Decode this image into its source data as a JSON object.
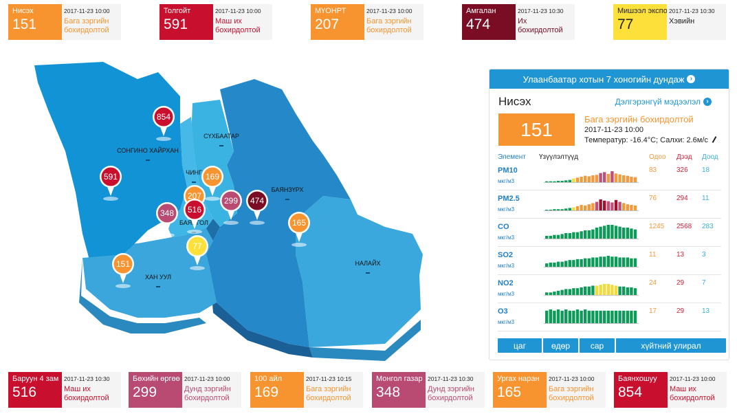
{
  "top_stations": [
    {
      "name": "Нисэх",
      "value": "151",
      "time": "2017-11-23 10:00",
      "level": "Бага зэргийн бохирдолтой",
      "color": "#f7942f",
      "level_color": "#f7942f"
    },
    {
      "name": "Толгойт",
      "value": "591",
      "time": "2017-11-23 10:00",
      "level": "Маш их бохирдолтой",
      "color": "#c8102e",
      "level_color": "#c8102e"
    },
    {
      "name": "МҮОНРТ",
      "value": "207",
      "time": "2017-11-23 10:00",
      "level": "Бага зэргийн бохирдолтой",
      "color": "#f7942f",
      "level_color": "#f7942f"
    },
    {
      "name": "Амгалан",
      "value": "474",
      "time": "2017-11-23 10:30",
      "level": "Их бохирдолтой",
      "color": "#7a0d24",
      "level_color": "#7a0d24"
    },
    {
      "name": "Мишээл экспо",
      "value": "77",
      "time": "2017-11-23 10:30",
      "level": "Хэвийн",
      "color": "#fde03a",
      "level_color": "#222222",
      "name_color": "#222222",
      "value_color": "#222222"
    }
  ],
  "bottom_stations": [
    {
      "name": "Баруун 4 зам",
      "value": "516",
      "time": "2017-11-23 10:30",
      "level": "Маш их бохирдолтой",
      "color": "#c8102e",
      "level_color": "#c8102e"
    },
    {
      "name": "Бөхийн өргөө",
      "value": "299",
      "time": "2017-11-23 10:00",
      "level": "Дунд зэргийн бохирдолтой",
      "color": "#b94a72",
      "level_color": "#b94a72"
    },
    {
      "name": "100 айл",
      "value": "169",
      "time": "2017-11-23 10:15",
      "level": "Бага зэргийн бохирдолтой",
      "color": "#f7942f",
      "level_color": "#f7942f"
    },
    {
      "name": "Монгол газар",
      "value": "348",
      "time": "2017-11-23 10:30",
      "level": "Дунд зэргийн бохирдолтой",
      "color": "#b94a72",
      "level_color": "#b94a72"
    },
    {
      "name": "Ургах наран",
      "value": "165",
      "time": "2017-11-23 10:00",
      "level": "Бага зэргийн бохирдолтой",
      "color": "#f7942f",
      "level_color": "#f7942f"
    },
    {
      "name": "Баянхошуу",
      "value": "854",
      "time": "2017-11-23 10:00",
      "level": "Маш их бохирдолтой",
      "color": "#c8102e",
      "level_color": "#c8102e"
    }
  ],
  "map": {
    "districts": [
      "СОНГИНО ХАЙРХАН",
      "СҮХБААТАР",
      "ЧИНГ",
      "БАЯНЗҮРХ",
      "БАЯНГОЛ",
      "ХАН УУЛ",
      "НАЛАЙХ"
    ],
    "pins": [
      {
        "value": "854",
        "color": "#c8102e"
      },
      {
        "value": "591",
        "color": "#c8102e"
      },
      {
        "value": "169",
        "color": "#f7942f"
      },
      {
        "value": "207",
        "color": "#f7942f"
      },
      {
        "value": "516",
        "color": "#c8102e"
      },
      {
        "value": "299",
        "color": "#b94a72"
      },
      {
        "value": "474",
        "color": "#7a0d24"
      },
      {
        "value": "348",
        "color": "#b94a72"
      },
      {
        "value": "165",
        "color": "#f7942f"
      },
      {
        "value": "77",
        "color": "#fde03a"
      },
      {
        "value": "151",
        "color": "#f7942f"
      }
    ]
  },
  "panel": {
    "header": "Улаанбаатар хотын 7 хоногийн дундаж",
    "station_name": "Нисэх",
    "detail_link": "Дэлгэрэнгүй мэдээлэл",
    "aqi": "151",
    "level": "Бага зэргийн бохирдолтой",
    "time": "2017-11-23 10:00",
    "weather": "Температур: -16.4°C; Салхи: 2.6м/с",
    "columns": {
      "element": "Элемент",
      "indicators": "Үзүүлэлтүүд",
      "current": "Одоо",
      "max": "Дээд",
      "min": "Доод"
    },
    "pollutants": [
      {
        "name": "PM10",
        "unit": "мкг/м3",
        "current": "83",
        "max": "326",
        "min": "18",
        "trend": [
          2,
          2,
          2,
          3,
          3,
          4,
          5,
          8,
          10,
          12,
          14,
          13,
          15,
          16,
          20,
          22,
          18,
          24,
          19,
          17,
          15,
          14,
          12,
          11
        ],
        "colors": [
          "g",
          "g",
          "g",
          "g",
          "g",
          "g",
          "g",
          "y",
          "o",
          "o",
          "o",
          "o",
          "o",
          "o",
          "p",
          "p",
          "o",
          "p",
          "o",
          "o",
          "o",
          "o",
          "o",
          "o"
        ]
      },
      {
        "name": "PM2.5",
        "unit": "мкг/м3",
        "current": "76",
        "max": "294",
        "min": "11",
        "trend": [
          1,
          1,
          2,
          2,
          2,
          3,
          4,
          5,
          7,
          9,
          8,
          10,
          12,
          14,
          18,
          16,
          15,
          13,
          17,
          14,
          12,
          10,
          9,
          8
        ],
        "colors": [
          "g",
          "g",
          "g",
          "g",
          "g",
          "g",
          "g",
          "y",
          "o",
          "o",
          "o",
          "o",
          "o",
          "p",
          "r",
          "r",
          "p",
          "p",
          "r",
          "p",
          "o",
          "o",
          "o",
          "o"
        ]
      },
      {
        "name": "CO",
        "unit": "мкг/м3",
        "current": "1245",
        "max": "2568",
        "min": "283",
        "trend": [
          3,
          3,
          4,
          4,
          5,
          6,
          6,
          7,
          7,
          8,
          9,
          9,
          10,
          12,
          13,
          14,
          15,
          15,
          14,
          13,
          12,
          12,
          11,
          10
        ],
        "colors": [
          "g",
          "g",
          "g",
          "g",
          "g",
          "g",
          "g",
          "g",
          "g",
          "g",
          "g",
          "g",
          "g",
          "g",
          "g",
          "g",
          "g",
          "g",
          "g",
          "g",
          "g",
          "g",
          "g",
          "g"
        ]
      },
      {
        "name": "SO2",
        "unit": "мкг/м3",
        "current": "11",
        "max": "13",
        "min": "3",
        "trend": [
          4,
          5,
          5,
          6,
          6,
          7,
          8,
          8,
          9,
          9,
          10,
          10,
          11,
          11,
          12,
          12,
          13,
          12,
          12,
          11,
          11,
          11,
          10,
          10
        ],
        "colors": [
          "g",
          "g",
          "g",
          "g",
          "g",
          "g",
          "g",
          "g",
          "g",
          "g",
          "g",
          "g",
          "g",
          "g",
          "g",
          "g",
          "g",
          "g",
          "g",
          "g",
          "g",
          "g",
          "g",
          "g"
        ]
      },
      {
        "name": "NO2",
        "unit": "мкг/м3",
        "current": "24",
        "max": "29",
        "min": "7",
        "trend": [
          3,
          3,
          4,
          5,
          6,
          7,
          7,
          8,
          8,
          9,
          10,
          10,
          11,
          11,
          12,
          13,
          13,
          12,
          11,
          10,
          10,
          9,
          9,
          8
        ],
        "colors": [
          "g",
          "g",
          "g",
          "g",
          "g",
          "g",
          "g",
          "g",
          "g",
          "g",
          "g",
          "g",
          "g",
          "y",
          "y",
          "y",
          "y",
          "y",
          "y",
          "g",
          "g",
          "g",
          "g",
          "g"
        ]
      },
      {
        "name": "O3",
        "unit": "мкг/м3",
        "current": "17",
        "max": "29",
        "min": "13",
        "trend": [
          10,
          11,
          10,
          11,
          10,
          11,
          10,
          10,
          11,
          10,
          11,
          10,
          10,
          10,
          10,
          10,
          10,
          10,
          10,
          10,
          10,
          10,
          10,
          10
        ],
        "colors": [
          "g",
          "g",
          "g",
          "g",
          "g",
          "g",
          "g",
          "g",
          "g",
          "g",
          "g",
          "g",
          "g",
          "g",
          "g",
          "g",
          "g",
          "g",
          "g",
          "g",
          "g",
          "g",
          "g",
          "g"
        ]
      }
    ],
    "bar_colors": {
      "g": "#0d9b5a",
      "y": "#f2dc3a",
      "o": "#f39a3d",
      "p": "#c0507a",
      "r": "#a2122e"
    },
    "buttons": [
      "цаг",
      "өдөр",
      "сар",
      "хүйтний улирал"
    ]
  }
}
